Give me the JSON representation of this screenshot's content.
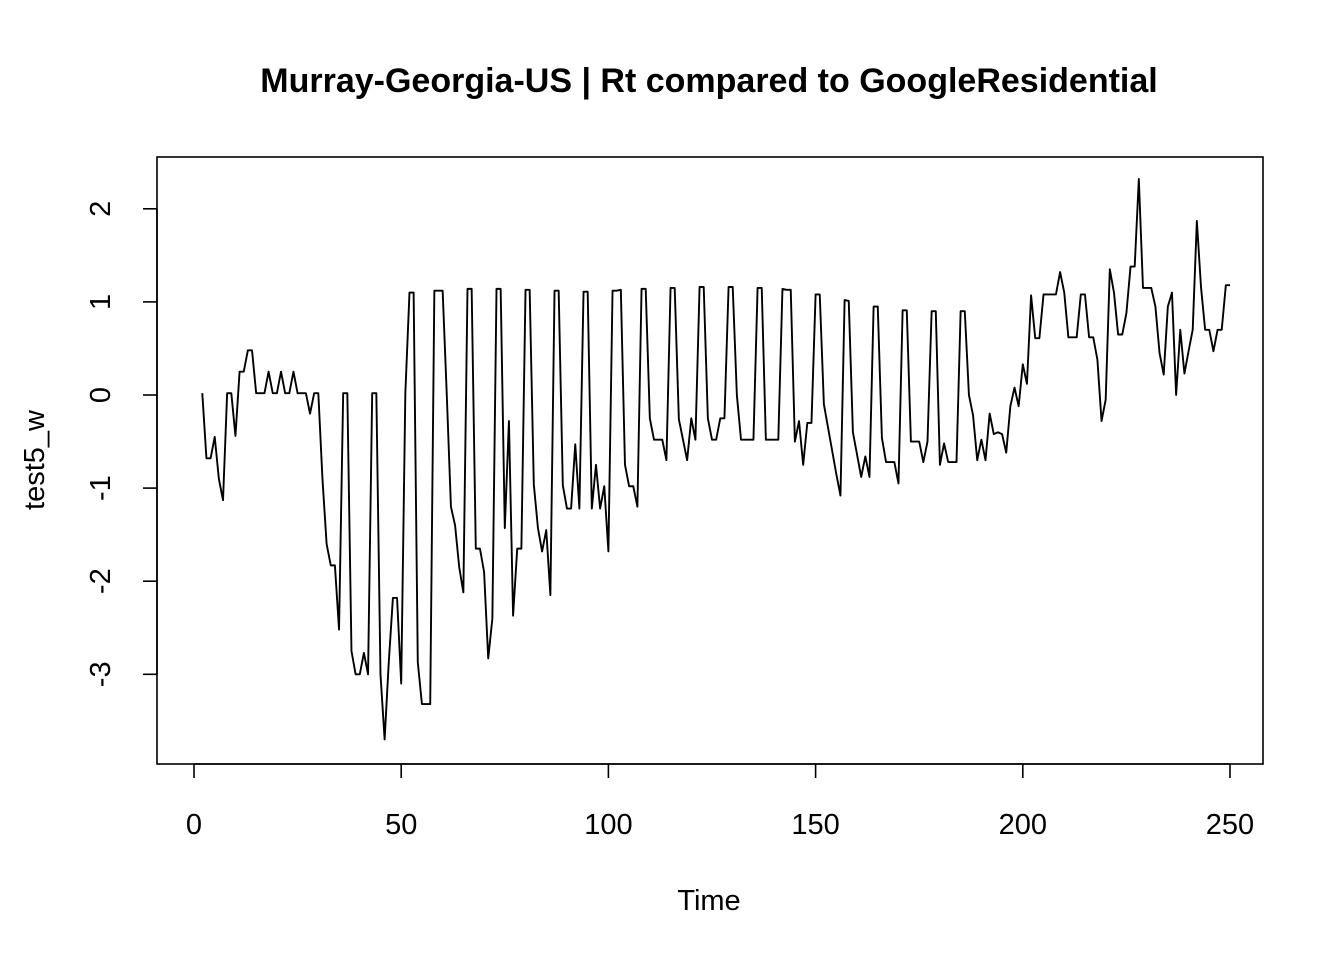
{
  "chart_data": {
    "type": "line",
    "title": "Murray-Georgia-US | Rt compared to GoogleResidential",
    "xlabel": "Time",
    "ylabel": "test5_w",
    "xlim": [
      0,
      250
    ],
    "ylim": [
      -3.5,
      2.5
    ],
    "x_ticks": [
      0,
      50,
      100,
      150,
      200,
      250
    ],
    "y_ticks": [
      -3,
      -2,
      -1,
      0,
      1,
      2
    ],
    "grid": false,
    "line_color": "#000000",
    "series": [
      {
        "x_start": 2,
        "x_step": 1,
        "values": [
          0.02,
          -0.68,
          -0.68,
          -0.45,
          -0.9,
          -1.13,
          0.02,
          0.02,
          -0.44,
          0.25,
          0.25,
          0.48,
          0.48,
          0.02,
          0.02,
          0.02,
          0.25,
          0.02,
          0.02,
          0.25,
          0.02,
          0.02,
          0.25,
          0.02,
          0.02,
          0.02,
          -0.2,
          0.02,
          0.02,
          -0.9,
          -1.6,
          -1.83,
          -1.83,
          -2.52,
          0.02,
          0.02,
          -2.75,
          -3.0,
          -3.0,
          -2.77,
          -3.0,
          0.02,
          0.02,
          -3.0,
          -3.7,
          -2.87,
          -2.18,
          -2.18,
          -3.1,
          0.02,
          1.1,
          1.1,
          -2.87,
          -3.32,
          -3.32,
          -3.32,
          1.12,
          1.12,
          1.12,
          0.0,
          -1.2,
          -1.4,
          -1.85,
          -2.12,
          1.14,
          1.14,
          -1.65,
          -1.65,
          -1.9,
          -2.83,
          -2.4,
          1.14,
          1.14,
          -1.43,
          -0.28,
          -2.37,
          -1.65,
          -1.65,
          1.13,
          1.13,
          -0.96,
          -1.43,
          -1.68,
          -1.45,
          -2.15,
          1.12,
          1.12,
          -0.97,
          -1.22,
          -1.22,
          -0.53,
          -1.22,
          1.11,
          1.11,
          -1.22,
          -0.75,
          -1.22,
          -0.98,
          -1.68,
          1.12,
          1.12,
          1.13,
          -0.75,
          -0.98,
          -0.98,
          -1.2,
          1.14,
          1.14,
          -0.25,
          -0.48,
          -0.48,
          -0.48,
          -0.7,
          1.15,
          1.15,
          -0.26,
          -0.48,
          -0.7,
          -0.25,
          -0.48,
          1.16,
          1.16,
          -0.25,
          -0.48,
          -0.48,
          -0.25,
          -0.25,
          1.16,
          1.16,
          0.0,
          -0.48,
          -0.48,
          -0.48,
          -0.48,
          1.15,
          1.15,
          -0.48,
          -0.48,
          -0.48,
          -0.48,
          1.14,
          1.13,
          1.13,
          -0.5,
          -0.28,
          -0.75,
          -0.3,
          -0.3,
          1.08,
          1.08,
          -0.1,
          -0.35,
          -0.6,
          -0.85,
          -1.08,
          1.02,
          1.01,
          -0.4,
          -0.64,
          -0.88,
          -0.66,
          -0.88,
          0.95,
          0.95,
          -0.46,
          -0.72,
          -0.72,
          -0.72,
          -0.95,
          0.91,
          0.91,
          -0.5,
          -0.5,
          -0.5,
          -0.72,
          -0.5,
          0.9,
          0.9,
          -0.75,
          -0.52,
          -0.72,
          -0.72,
          -0.72,
          0.9,
          0.9,
          0.0,
          -0.22,
          -0.7,
          -0.48,
          -0.7,
          -0.2,
          -0.42,
          -0.4,
          -0.42,
          -0.62,
          -0.12,
          0.08,
          -0.12,
          0.33,
          0.12,
          1.07,
          0.61,
          0.61,
          1.08,
          1.08,
          1.08,
          1.08,
          1.32,
          1.1,
          0.62,
          0.62,
          0.62,
          1.08,
          1.08,
          0.62,
          0.62,
          0.38,
          -0.28,
          -0.05,
          1.35,
          1.1,
          0.65,
          0.65,
          0.88,
          1.38,
          1.38,
          2.32,
          1.15,
          1.15,
          1.15,
          0.95,
          0.45,
          0.22,
          0.95,
          1.1,
          0.0,
          0.7,
          0.23,
          0.47,
          0.7,
          1.87,
          1.16,
          0.7,
          0.7,
          0.47,
          0.7,
          0.7,
          1.18,
          1.18
        ]
      }
    ]
  }
}
